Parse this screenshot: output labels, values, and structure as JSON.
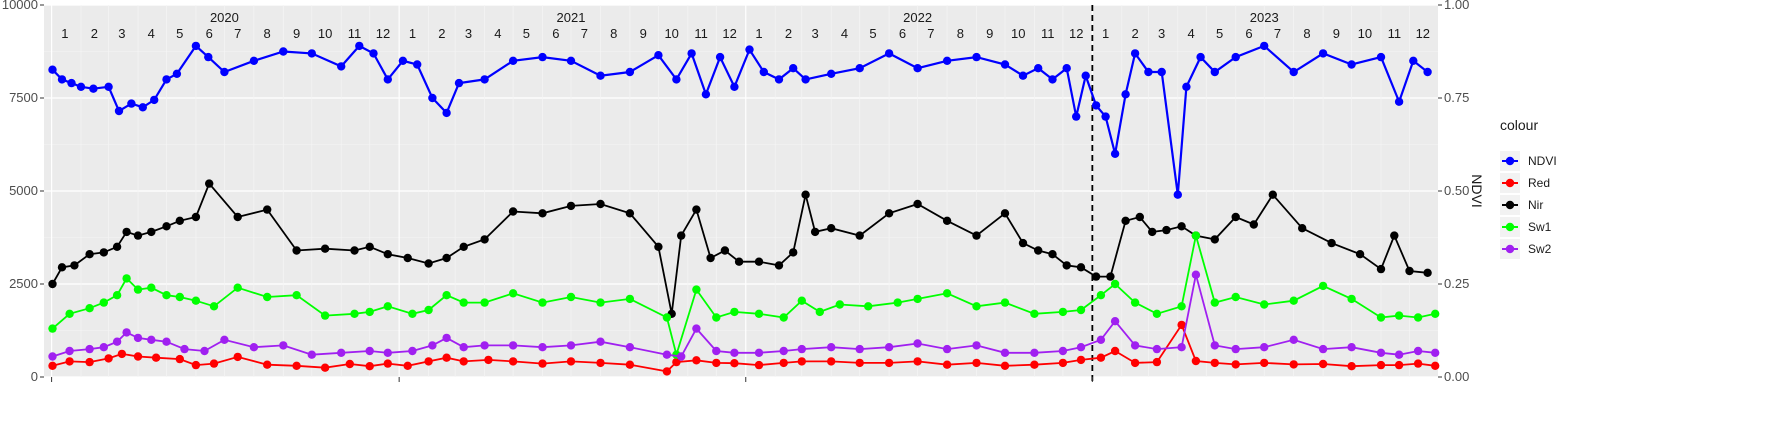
{
  "chart_data": {
    "type": "line",
    "title": "",
    "xlabel": "",
    "ylabel_left": "",
    "ylabel_right": "NDVI",
    "x_range": [
      "2019-12-24",
      "2023-12-31"
    ],
    "ylim_left": [
      0,
      10000
    ],
    "ylim_right": [
      0,
      1
    ],
    "y_ticks_left": [
      0,
      2500,
      5000,
      7500,
      10000
    ],
    "y_tick_labels_left": [
      "0",
      "2500",
      "5000",
      "7500",
      "10000"
    ],
    "y_ticks_right": [
      0,
      0.25,
      0.5,
      0.75,
      1
    ],
    "y_tick_labels_right": [
      "0.00",
      "0.25",
      "0.50",
      "0.75",
      "1.00"
    ],
    "grid": true,
    "background": "#ebebeb",
    "year_labels": [
      "2020",
      "2021",
      "2022",
      "2023"
    ],
    "month_labels": [
      "1",
      "2",
      "3",
      "4",
      "5",
      "6",
      "7",
      "8",
      "9",
      "10",
      "11",
      "12"
    ],
    "vertical_line_date": "2023-01-01",
    "legend": {
      "title": "colour",
      "position": "right",
      "entries": [
        "NDVI",
        "Red",
        "Nir",
        "Sw1",
        "Sw2"
      ]
    },
    "series": [
      {
        "name": "NDVI",
        "color": "#0000ff",
        "axis": "right",
        "x": [
          "2020-01-02",
          "2020-01-12",
          "2020-01-22",
          "2020-02-01",
          "2020-02-14",
          "2020-03-01",
          "2020-03-12",
          "2020-03-25",
          "2020-04-06",
          "2020-04-18",
          "2020-05-01",
          "2020-05-12",
          "2020-06-01",
          "2020-06-14",
          "2020-07-01",
          "2020-08-01",
          "2020-09-01",
          "2020-10-01",
          "2020-11-01",
          "2020-11-20",
          "2020-12-05",
          "2020-12-20",
          "2021-01-05",
          "2021-01-20",
          "2021-02-05",
          "2021-02-20",
          "2021-03-05",
          "2021-04-01",
          "2021-05-01",
          "2021-06-01",
          "2021-07-01",
          "2021-08-01",
          "2021-09-01",
          "2021-10-01",
          "2021-10-20",
          "2021-11-05",
          "2021-11-20",
          "2021-12-05",
          "2021-12-20",
          "2022-01-05",
          "2022-01-20",
          "2022-02-05",
          "2022-02-20",
          "2022-03-05",
          "2022-04-01",
          "2022-05-01",
          "2022-06-01",
          "2022-07-01",
          "2022-08-01",
          "2022-09-01",
          "2022-10-01",
          "2022-10-20",
          "2022-11-05",
          "2022-11-20",
          "2022-12-05",
          "2022-12-15",
          "2022-12-25",
          "2023-01-05",
          "2023-01-15",
          "2023-01-25",
          "2023-02-05",
          "2023-02-15",
          "2023-03-01",
          "2023-03-15",
          "2023-04-01",
          "2023-04-10",
          "2023-04-25",
          "2023-05-10",
          "2023-06-01",
          "2023-07-01",
          "2023-08-01",
          "2023-09-01",
          "2023-10-01",
          "2023-11-01",
          "2023-11-20",
          "2023-12-05",
          "2023-12-20"
        ],
        "values": [
          0.826,
          0.8,
          0.79,
          0.78,
          0.775,
          0.78,
          0.715,
          0.735,
          0.725,
          0.745,
          0.8,
          0.815,
          0.89,
          0.86,
          0.82,
          0.85,
          0.875,
          0.87,
          0.835,
          0.89,
          0.87,
          0.8,
          0.85,
          0.84,
          0.75,
          0.71,
          0.79,
          0.8,
          0.85,
          0.86,
          0.85,
          0.81,
          0.82,
          0.865,
          0.8,
          0.87,
          0.76,
          0.86,
          0.78,
          0.88,
          0.82,
          0.8,
          0.83,
          0.8,
          0.815,
          0.83,
          0.87,
          0.83,
          0.85,
          0.86,
          0.84,
          0.81,
          0.83,
          0.8,
          0.83,
          0.7,
          0.81,
          0.73,
          0.7,
          0.6,
          0.76,
          0.87,
          0.82,
          0.82,
          0.49,
          0.78,
          0.86,
          0.82,
          0.86,
          0.89,
          0.82,
          0.87,
          0.84,
          0.86,
          0.74,
          0.85,
          0.82
        ]
      },
      {
        "name": "Red",
        "color": "#ff0000",
        "axis": "left",
        "x": [
          "2020-01-02",
          "2020-01-20",
          "2020-02-10",
          "2020-03-01",
          "2020-03-15",
          "2020-04-01",
          "2020-04-20",
          "2020-05-15",
          "2020-06-01",
          "2020-06-20",
          "2020-07-15",
          "2020-08-15",
          "2020-09-15",
          "2020-10-15",
          "2020-11-10",
          "2020-12-01",
          "2020-12-20",
          "2021-01-10",
          "2021-02-01",
          "2021-02-20",
          "2021-03-10",
          "2021-04-05",
          "2021-05-01",
          "2021-06-01",
          "2021-07-01",
          "2021-08-01",
          "2021-09-01",
          "2021-10-10",
          "2021-10-20",
          "2021-11-10",
          "2021-12-01",
          "2021-12-20",
          "2022-01-15",
          "2022-02-10",
          "2022-03-01",
          "2022-04-01",
          "2022-05-01",
          "2022-06-01",
          "2022-07-01",
          "2022-08-01",
          "2022-09-01",
          "2022-10-01",
          "2022-11-01",
          "2022-12-01",
          "2022-12-20",
          "2023-01-10",
          "2023-01-25",
          "2023-02-15",
          "2023-03-10",
          "2023-04-05",
          "2023-04-20",
          "2023-05-10",
          "2023-06-01",
          "2023-07-01",
          "2023-08-01",
          "2023-09-01",
          "2023-10-01",
          "2023-11-01",
          "2023-11-20",
          "2023-12-10",
          "2023-12-28"
        ],
        "values": [
          300,
          420,
          400,
          500,
          620,
          550,
          520,
          480,
          320,
          360,
          540,
          330,
          300,
          250,
          350,
          290,
          360,
          300,
          420,
          520,
          420,
          460,
          420,
          360,
          420,
          380,
          330,
          150,
          400,
          450,
          380,
          370,
          320,
          380,
          420,
          420,
          380,
          380,
          420,
          330,
          380,
          300,
          330,
          380,
          460,
          520,
          700,
          380,
          400,
          1400,
          430,
          380,
          340,
          380,
          340,
          350,
          290,
          320,
          320,
          360,
          300
        ]
      },
      {
        "name": "Nir",
        "color": "#000000",
        "axis": "left",
        "x": [
          "2020-01-02",
          "2020-01-12",
          "2020-01-25",
          "2020-02-10",
          "2020-02-25",
          "2020-03-10",
          "2020-03-20",
          "2020-04-01",
          "2020-04-15",
          "2020-05-01",
          "2020-05-15",
          "2020-06-01",
          "2020-06-15",
          "2020-07-15",
          "2020-08-15",
          "2020-09-15",
          "2020-10-15",
          "2020-11-15",
          "2020-12-01",
          "2020-12-20",
          "2021-01-10",
          "2021-02-01",
          "2021-02-20",
          "2021-03-10",
          "2021-04-01",
          "2021-05-01",
          "2021-06-01",
          "2021-07-01",
          "2021-08-01",
          "2021-09-01",
          "2021-10-01",
          "2021-10-15",
          "2021-10-25",
          "2021-11-10",
          "2021-11-25",
          "2021-12-10",
          "2021-12-25",
          "2022-01-15",
          "2022-02-05",
          "2022-02-20",
          "2022-03-05",
          "2022-03-15",
          "2022-04-01",
          "2022-05-01",
          "2022-06-01",
          "2022-07-01",
          "2022-08-01",
          "2022-09-01",
          "2022-10-01",
          "2022-10-20",
          "2022-11-05",
          "2022-11-20",
          "2022-12-05",
          "2022-12-20",
          "2023-01-05",
          "2023-01-20",
          "2023-02-05",
          "2023-02-20",
          "2023-03-05",
          "2023-03-20",
          "2023-04-05",
          "2023-04-20",
          "2023-05-10",
          "2023-06-01",
          "2023-06-20",
          "2023-07-10",
          "2023-08-10",
          "2023-09-10",
          "2023-10-10",
          "2023-11-01",
          "2023-11-15",
          "2023-12-01",
          "2023-12-20"
        ],
        "values": [
          2500,
          2950,
          3000,
          3300,
          3350,
          3500,
          3900,
          3800,
          3900,
          4050,
          4200,
          4300,
          5200,
          4300,
          4500,
          3400,
          3450,
          3400,
          3500,
          3300,
          3200,
          3050,
          3200,
          3500,
          3700,
          4450,
          4400,
          4600,
          4650,
          4400,
          3500,
          1700,
          3800,
          4500,
          3200,
          3400,
          3100,
          3100,
          3000,
          3350,
          4900,
          3900,
          4000,
          3800,
          4400,
          4650,
          4200,
          3800,
          4400,
          3600,
          3400,
          3300,
          3000,
          2950,
          2700,
          2700,
          4200,
          4300,
          3900,
          3950,
          4050,
          3800,
          3700,
          4300,
          4100,
          4900,
          4000,
          3600,
          3300,
          2900,
          3800,
          2850,
          2800
        ]
      },
      {
        "name": "Sw1",
        "color": "#00ff00",
        "axis": "left",
        "x": [
          "2020-01-02",
          "2020-01-20",
          "2020-02-10",
          "2020-02-25",
          "2020-03-10",
          "2020-03-20",
          "2020-04-01",
          "2020-04-15",
          "2020-05-01",
          "2020-05-15",
          "2020-06-01",
          "2020-06-20",
          "2020-07-15",
          "2020-08-15",
          "2020-09-15",
          "2020-10-15",
          "2020-11-15",
          "2020-12-01",
          "2020-12-20",
          "2021-01-15",
          "2021-02-01",
          "2021-02-20",
          "2021-03-10",
          "2021-04-01",
          "2021-05-01",
          "2021-06-01",
          "2021-07-01",
          "2021-08-01",
          "2021-09-01",
          "2021-10-10",
          "2021-10-20",
          "2021-11-10",
          "2021-12-01",
          "2021-12-20",
          "2022-01-15",
          "2022-02-10",
          "2022-03-01",
          "2022-03-20",
          "2022-04-10",
          "2022-05-10",
          "2022-06-10",
          "2022-07-01",
          "2022-08-01",
          "2022-09-01",
          "2022-10-01",
          "2022-11-01",
          "2022-12-01",
          "2022-12-20",
          "2023-01-10",
          "2023-01-25",
          "2023-02-15",
          "2023-03-10",
          "2023-04-05",
          "2023-04-20",
          "2023-05-10",
          "2023-06-01",
          "2023-07-01",
          "2023-08-01",
          "2023-09-01",
          "2023-10-01",
          "2023-11-01",
          "2023-11-20",
          "2023-12-10",
          "2023-12-28"
        ],
        "values": [
          1300,
          1700,
          1850,
          2000,
          2200,
          2650,
          2350,
          2400,
          2200,
          2150,
          2050,
          1900,
          2400,
          2150,
          2200,
          1650,
          1700,
          1750,
          1900,
          1700,
          1800,
          2200,
          2000,
          2000,
          2250,
          2000,
          2150,
          2000,
          2100,
          1600,
          600,
          2350,
          1600,
          1750,
          1700,
          1600,
          2050,
          1750,
          1950,
          1900,
          2000,
          2100,
          2250,
          1900,
          2000,
          1700,
          1750,
          1800,
          2200,
          2500,
          2000,
          1700,
          1900,
          3800,
          2000,
          2150,
          1950,
          2050,
          2450,
          2100,
          1600,
          1650,
          1600,
          1700
        ]
      },
      {
        "name": "Sw2",
        "color": "#a020f0",
        "axis": "left",
        "x": [
          "2020-01-02",
          "2020-01-20",
          "2020-02-10",
          "2020-02-25",
          "2020-03-10",
          "2020-03-20",
          "2020-04-01",
          "2020-04-15",
          "2020-05-01",
          "2020-05-20",
          "2020-06-10",
          "2020-07-01",
          "2020-08-01",
          "2020-09-01",
          "2020-10-01",
          "2020-11-01",
          "2020-12-01",
          "2020-12-20",
          "2021-01-15",
          "2021-02-05",
          "2021-02-20",
          "2021-03-10",
          "2021-04-01",
          "2021-05-01",
          "2021-06-01",
          "2021-07-01",
          "2021-08-01",
          "2021-09-01",
          "2021-10-10",
          "2021-10-25",
          "2021-11-10",
          "2021-12-01",
          "2021-12-20",
          "2022-01-15",
          "2022-02-10",
          "2022-03-01",
          "2022-04-01",
          "2022-05-01",
          "2022-06-01",
          "2022-07-01",
          "2022-08-01",
          "2022-09-01",
          "2022-10-01",
          "2022-11-01",
          "2022-12-01",
          "2022-12-20",
          "2023-01-10",
          "2023-01-25",
          "2023-02-15",
          "2023-03-10",
          "2023-04-05",
          "2023-04-20",
          "2023-05-10",
          "2023-06-01",
          "2023-07-01",
          "2023-08-01",
          "2023-09-01",
          "2023-10-01",
          "2023-11-01",
          "2023-11-20",
          "2023-12-10",
          "2023-12-28"
        ],
        "values": [
          550,
          700,
          750,
          800,
          950,
          1200,
          1050,
          1000,
          950,
          750,
          700,
          1000,
          800,
          850,
          600,
          650,
          700,
          650,
          700,
          850,
          1050,
          800,
          850,
          850,
          800,
          850,
          950,
          800,
          600,
          550,
          1300,
          700,
          650,
          650,
          700,
          750,
          800,
          750,
          800,
          900,
          750,
          850,
          650,
          650,
          700,
          800,
          1000,
          1500,
          850,
          750,
          800,
          2750,
          850,
          750,
          800,
          1000,
          750,
          800,
          650,
          600,
          700,
          650
        ]
      }
    ]
  }
}
